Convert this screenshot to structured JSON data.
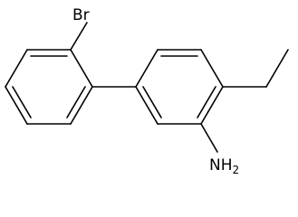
{
  "atoms": [
    {
      "label": "Br"
    },
    {
      "label": "NH",
      "subscript": "2"
    }
  ]
}
